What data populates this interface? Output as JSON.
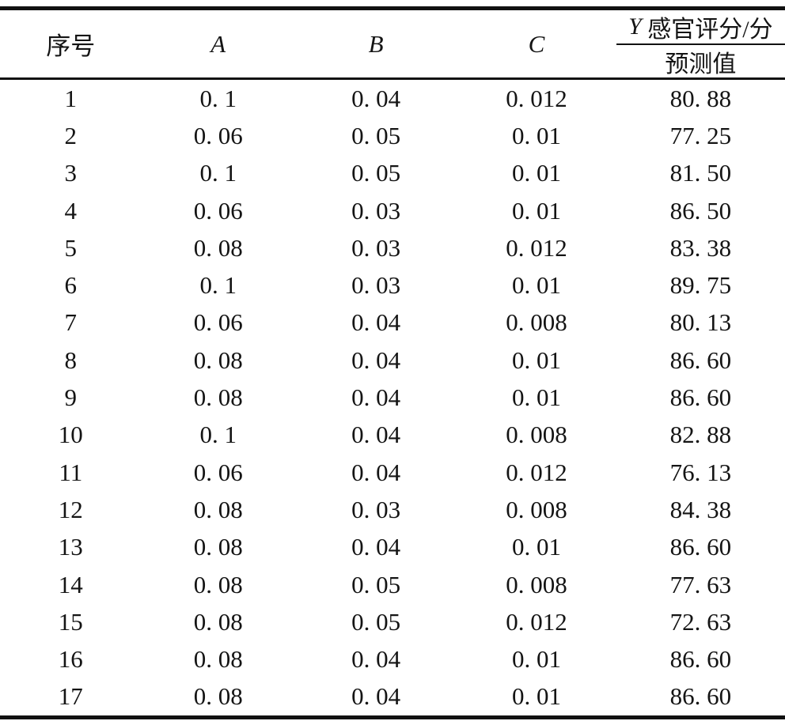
{
  "page": {
    "background": "#ffffff",
    "text_color": "#141414",
    "rule_color": "#111111"
  },
  "table": {
    "style": "three-line academic table",
    "columns": [
      {
        "key": "no",
        "label": "序号"
      },
      {
        "key": "a",
        "label": "A"
      },
      {
        "key": "b",
        "label": "B"
      },
      {
        "key": "c",
        "label": "C"
      }
    ],
    "y_column": {
      "top_italic": "Y",
      "top_rest": " 感官评分/分",
      "bottom": "预测值"
    },
    "rows": [
      [
        "1",
        "0. 1",
        "0. 04",
        "0. 012",
        "80. 88"
      ],
      [
        "2",
        "0. 06",
        "0. 05",
        "0. 01",
        "77. 25"
      ],
      [
        "3",
        "0. 1",
        "0. 05",
        "0. 01",
        "81. 50"
      ],
      [
        "4",
        "0. 06",
        "0. 03",
        "0. 01",
        "86. 50"
      ],
      [
        "5",
        "0. 08",
        "0. 03",
        "0. 012",
        "83. 38"
      ],
      [
        "6",
        "0. 1",
        "0. 03",
        "0. 01",
        "89. 75"
      ],
      [
        "7",
        "0. 06",
        "0. 04",
        "0. 008",
        "80. 13"
      ],
      [
        "8",
        "0. 08",
        "0. 04",
        "0. 01",
        "86. 60"
      ],
      [
        "9",
        "0. 08",
        "0. 04",
        "0. 01",
        "86. 60"
      ],
      [
        "10",
        "0. 1",
        "0. 04",
        "0. 008",
        "82. 88"
      ],
      [
        "11",
        "0. 06",
        "0. 04",
        "0. 012",
        "76. 13"
      ],
      [
        "12",
        "0. 08",
        "0. 03",
        "0. 008",
        "84. 38"
      ],
      [
        "13",
        "0. 08",
        "0. 04",
        "0. 01",
        "86. 60"
      ],
      [
        "14",
        "0. 08",
        "0. 05",
        "0. 008",
        "77. 63"
      ],
      [
        "15",
        "0. 08",
        "0. 05",
        "0. 012",
        "72. 63"
      ],
      [
        "16",
        "0. 08",
        "0. 04",
        "0. 01",
        "86. 60"
      ],
      [
        "17",
        "0. 08",
        "0. 04",
        "0. 01",
        "86. 60"
      ]
    ]
  }
}
